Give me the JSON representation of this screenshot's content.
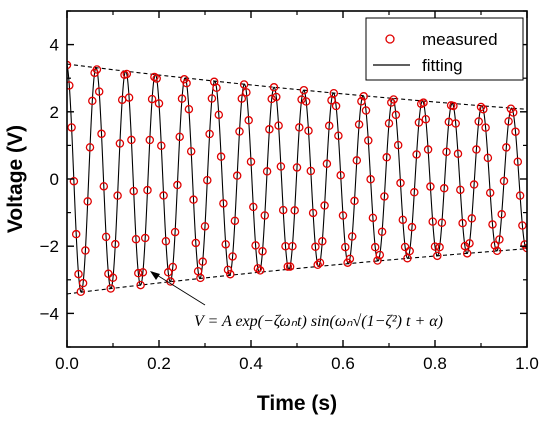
{
  "chart_data": {
    "type": "scatter",
    "xlabel": "Time (s)",
    "ylabel": "Voltage (V)",
    "xlim": [
      0,
      1.0
    ],
    "ylim": [
      -5,
      5
    ],
    "x_ticks": [
      "0.0",
      "0.2",
      "0.4",
      "0.6",
      "0.8",
      "1.0"
    ],
    "y_ticks": [
      "−4",
      "−2",
      "0",
      "2",
      "4"
    ],
    "legend": [
      {
        "label": "measured",
        "marker": "open-circle",
        "color": "#e00000"
      },
      {
        "label": "fitting",
        "marker": "line",
        "color": "#000000"
      }
    ],
    "legend_position": "top-right",
    "envelope_style": "dashed",
    "annotation": "V = A exp(−ζωₙt) sin(ωₙ√(1−ζ²) t + α)",
    "model": {
      "amplitude_A": 3.42,
      "damping_rate_zeta_omega_n": 0.5,
      "frequency_hz": 15.5,
      "phase_alpha": 1.7
    },
    "series": [
      {
        "name": "measured",
        "type": "scatter",
        "x_start": 0.0,
        "x_end": 1.0,
        "n_points": 201,
        "color": "#e00000"
      },
      {
        "name": "fitting",
        "type": "line",
        "x_start": 0.0,
        "x_end": 1.0,
        "n_points": 1201,
        "color": "#000000"
      },
      {
        "type": "envelope",
        "values": [
          [
            0.0,
            3.42
          ],
          [
            0.2,
            3.1
          ],
          [
            0.4,
            2.8
          ],
          [
            0.6,
            2.53
          ],
          [
            0.8,
            2.29
          ],
          [
            1.0,
            2.07
          ]
        ],
        "color": "#000000"
      }
    ],
    "grid": false
  }
}
